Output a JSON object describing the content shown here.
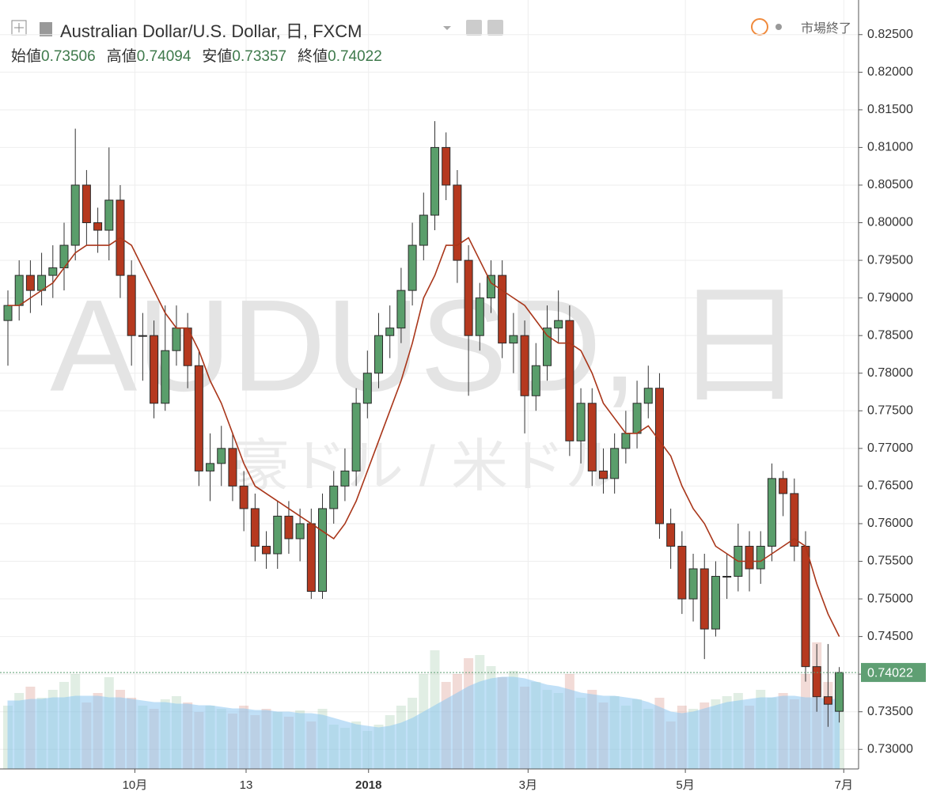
{
  "chart_data": {
    "type": "candlestick",
    "title": "Australian Dollar/U.S. Dollar, 日, FXCM",
    "status": "市場終了",
    "watermark": "AUDUSD, 日",
    "watermark_sub": "豪ドル / 米ドル",
    "legend": {
      "labels": [
        "始値",
        "高値",
        "安値",
        "終値"
      ],
      "values": [
        0.73506,
        0.74094,
        0.73357,
        0.74022
      ]
    },
    "open": [
      0.787,
      0.789,
      0.793,
      0.791,
      0.793,
      0.794,
      0.797,
      0.805,
      0.8,
      0.799,
      0.803,
      0.793,
      0.785,
      0.785,
      0.776,
      0.783,
      0.786,
      0.781,
      0.767,
      0.768,
      0.77,
      0.765,
      0.762,
      0.757,
      0.756,
      0.761,
      0.758,
      0.76,
      0.751,
      0.762,
      0.765,
      0.767,
      0.776,
      0.78,
      0.785,
      0.786,
      0.791,
      0.797,
      0.801,
      0.81,
      0.805,
      0.795,
      0.785,
      0.79,
      0.793,
      0.784,
      0.785,
      0.777,
      0.781,
      0.786,
      0.787,
      0.771,
      0.776,
      0.767,
      0.766,
      0.77,
      0.772,
      0.776,
      0.778,
      0.76,
      0.757,
      0.75,
      0.754,
      0.746,
      0.753,
      0.753,
      0.757,
      0.754,
      0.757,
      0.766,
      0.764,
      0.757,
      0.741,
      0.737,
      0.73506
    ],
    "high": [
      0.791,
      0.795,
      0.795,
      0.796,
      0.797,
      0.8,
      0.8125,
      0.807,
      0.802,
      0.81,
      0.805,
      0.795,
      0.788,
      0.787,
      0.789,
      0.789,
      0.788,
      0.783,
      0.772,
      0.773,
      0.772,
      0.767,
      0.764,
      0.759,
      0.763,
      0.763,
      0.762,
      0.762,
      0.764,
      0.767,
      0.77,
      0.778,
      0.783,
      0.788,
      0.789,
      0.794,
      0.8,
      0.804,
      0.8135,
      0.812,
      0.807,
      0.797,
      0.792,
      0.795,
      0.795,
      0.788,
      0.787,
      0.784,
      0.789,
      0.791,
      0.789,
      0.778,
      0.778,
      0.77,
      0.772,
      0.775,
      0.779,
      0.781,
      0.78,
      0.762,
      0.759,
      0.756,
      0.756,
      0.755,
      0.756,
      0.76,
      0.759,
      0.759,
      0.768,
      0.767,
      0.766,
      0.759,
      0.744,
      0.744,
      0.74094
    ],
    "low": [
      0.781,
      0.787,
      0.788,
      0.789,
      0.79,
      0.791,
      0.795,
      0.797,
      0.796,
      0.795,
      0.79,
      0.781,
      0.779,
      0.774,
      0.775,
      0.781,
      0.778,
      0.765,
      0.763,
      0.765,
      0.763,
      0.759,
      0.755,
      0.754,
      0.754,
      0.756,
      0.755,
      0.75,
      0.75,
      0.76,
      0.763,
      0.765,
      0.774,
      0.778,
      0.782,
      0.784,
      0.789,
      0.795,
      0.799,
      0.803,
      0.792,
      0.777,
      0.783,
      0.788,
      0.782,
      0.78,
      0.772,
      0.775,
      0.779,
      0.784,
      0.769,
      0.768,
      0.765,
      0.764,
      0.764,
      0.768,
      0.77,
      0.774,
      0.758,
      0.754,
      0.748,
      0.747,
      0.742,
      0.745,
      0.75,
      0.751,
      0.751,
      0.752,
      0.755,
      0.761,
      0.755,
      0.739,
      0.735,
      0.733,
      0.73357
    ],
    "close": [
      0.789,
      0.793,
      0.791,
      0.793,
      0.794,
      0.797,
      0.805,
      0.8,
      0.799,
      0.803,
      0.793,
      0.785,
      0.785,
      0.776,
      0.783,
      0.786,
      0.781,
      0.767,
      0.768,
      0.77,
      0.765,
      0.762,
      0.757,
      0.756,
      0.761,
      0.758,
      0.76,
      0.751,
      0.762,
      0.765,
      0.767,
      0.776,
      0.78,
      0.785,
      0.786,
      0.791,
      0.797,
      0.801,
      0.81,
      0.805,
      0.795,
      0.785,
      0.79,
      0.793,
      0.784,
      0.785,
      0.777,
      0.781,
      0.786,
      0.787,
      0.771,
      0.776,
      0.767,
      0.766,
      0.77,
      0.772,
      0.776,
      0.778,
      0.76,
      0.757,
      0.75,
      0.754,
      0.746,
      0.753,
      0.753,
      0.757,
      0.754,
      0.757,
      0.766,
      0.764,
      0.757,
      0.741,
      0.737,
      0.736,
      0.74022
    ],
    "ma": [
      0.789,
      0.789,
      0.79,
      0.791,
      0.792,
      0.794,
      0.796,
      0.797,
      0.797,
      0.797,
      0.798,
      0.797,
      0.794,
      0.791,
      0.788,
      0.786,
      0.786,
      0.783,
      0.779,
      0.776,
      0.772,
      0.768,
      0.765,
      0.764,
      0.763,
      0.762,
      0.761,
      0.76,
      0.759,
      0.758,
      0.76,
      0.763,
      0.767,
      0.771,
      0.775,
      0.779,
      0.784,
      0.79,
      0.793,
      0.797,
      0.797,
      0.798,
      0.795,
      0.792,
      0.791,
      0.79,
      0.789,
      0.787,
      0.785,
      0.784,
      0.784,
      0.783,
      0.78,
      0.776,
      0.774,
      0.772,
      0.772,
      0.773,
      0.771,
      0.769,
      0.765,
      0.762,
      0.76,
      0.757,
      0.756,
      0.755,
      0.755,
      0.755,
      0.756,
      0.757,
      0.758,
      0.757,
      0.752,
      0.748,
      0.745
    ],
    "volume": [
      40,
      48,
      52,
      45,
      50,
      55,
      60,
      42,
      48,
      58,
      50,
      45,
      40,
      38,
      44,
      46,
      42,
      36,
      40,
      38,
      35,
      40,
      34,
      38,
      36,
      33,
      37,
      30,
      38,
      28,
      26,
      30,
      24,
      28,
      34,
      40,
      45,
      60,
      75,
      55,
      60,
      70,
      72,
      65,
      58,
      62,
      52,
      55,
      50,
      48,
      60,
      45,
      50,
      42,
      46,
      40,
      44,
      38,
      45,
      30,
      40,
      38,
      42,
      44,
      46,
      48,
      40,
      50,
      45,
      48,
      44,
      60,
      80,
      55,
      50
    ],
    "volume_ma": [
      43,
      43,
      44,
      44,
      45,
      45,
      46,
      46,
      46,
      45,
      45,
      44,
      43,
      42,
      42,
      41,
      41,
      40,
      40,
      39,
      38,
      38,
      37,
      37,
      36,
      36,
      35,
      35,
      34,
      32,
      30,
      28,
      27,
      26,
      27,
      29,
      32,
      36,
      40,
      44,
      48,
      52,
      55,
      57,
      58,
      58,
      57,
      55,
      53,
      52,
      50,
      48,
      47,
      46,
      46,
      45,
      44,
      42,
      39,
      36,
      35,
      36,
      38,
      40,
      42,
      43,
      44,
      45,
      45,
      46,
      46,
      45,
      45,
      44,
      44
    ],
    "colors": {
      "up": "#5a9e6b",
      "down": "#b5391f",
      "ma": "#a9361a",
      "volume_ma": "#8fc8f2",
      "price_tag": "#5f9f73"
    },
    "xlim": [
      0,
      76
    ],
    "xticks": [
      {
        "value": 11.3,
        "label": "10月"
      },
      {
        "value": 21.2,
        "label": "13"
      },
      {
        "value": 32.1,
        "label": "2018"
      },
      {
        "value": 46.3,
        "label": "3月"
      },
      {
        "value": 60.3,
        "label": "5月"
      },
      {
        "value": 74.4,
        "label": "7月"
      }
    ],
    "ylim": [
      0.7274,
      0.8296
    ],
    "yticks": [
      {
        "value": 0.73,
        "label": "0.73000"
      },
      {
        "value": 0.735,
        "label": "0.73500"
      },
      {
        "value": 0.74,
        "label": "0.74000"
      },
      {
        "value": 0.745,
        "label": "0.74500"
      },
      {
        "value": 0.75,
        "label": "0.75000"
      },
      {
        "value": 0.755,
        "label": "0.75500"
      },
      {
        "value": 0.76,
        "label": "0.76000"
      },
      {
        "value": 0.765,
        "label": "0.76500"
      },
      {
        "value": 0.77,
        "label": "0.77000"
      },
      {
        "value": 0.775,
        "label": "0.77500"
      },
      {
        "value": 0.78,
        "label": "0.78000"
      },
      {
        "value": 0.785,
        "label": "0.78500"
      },
      {
        "value": 0.79,
        "label": "0.79000"
      },
      {
        "value": 0.795,
        "label": "0.79500"
      },
      {
        "value": 0.8,
        "label": "0.80000"
      },
      {
        "value": 0.805,
        "label": "0.80500"
      },
      {
        "value": 0.81,
        "label": "0.81000"
      },
      {
        "value": 0.815,
        "label": "0.81500"
      },
      {
        "value": 0.82,
        "label": "0.82000"
      },
      {
        "value": 0.825,
        "label": "0.82500"
      }
    ],
    "vlim": [
      0,
      100
    ],
    "grid": true
  }
}
